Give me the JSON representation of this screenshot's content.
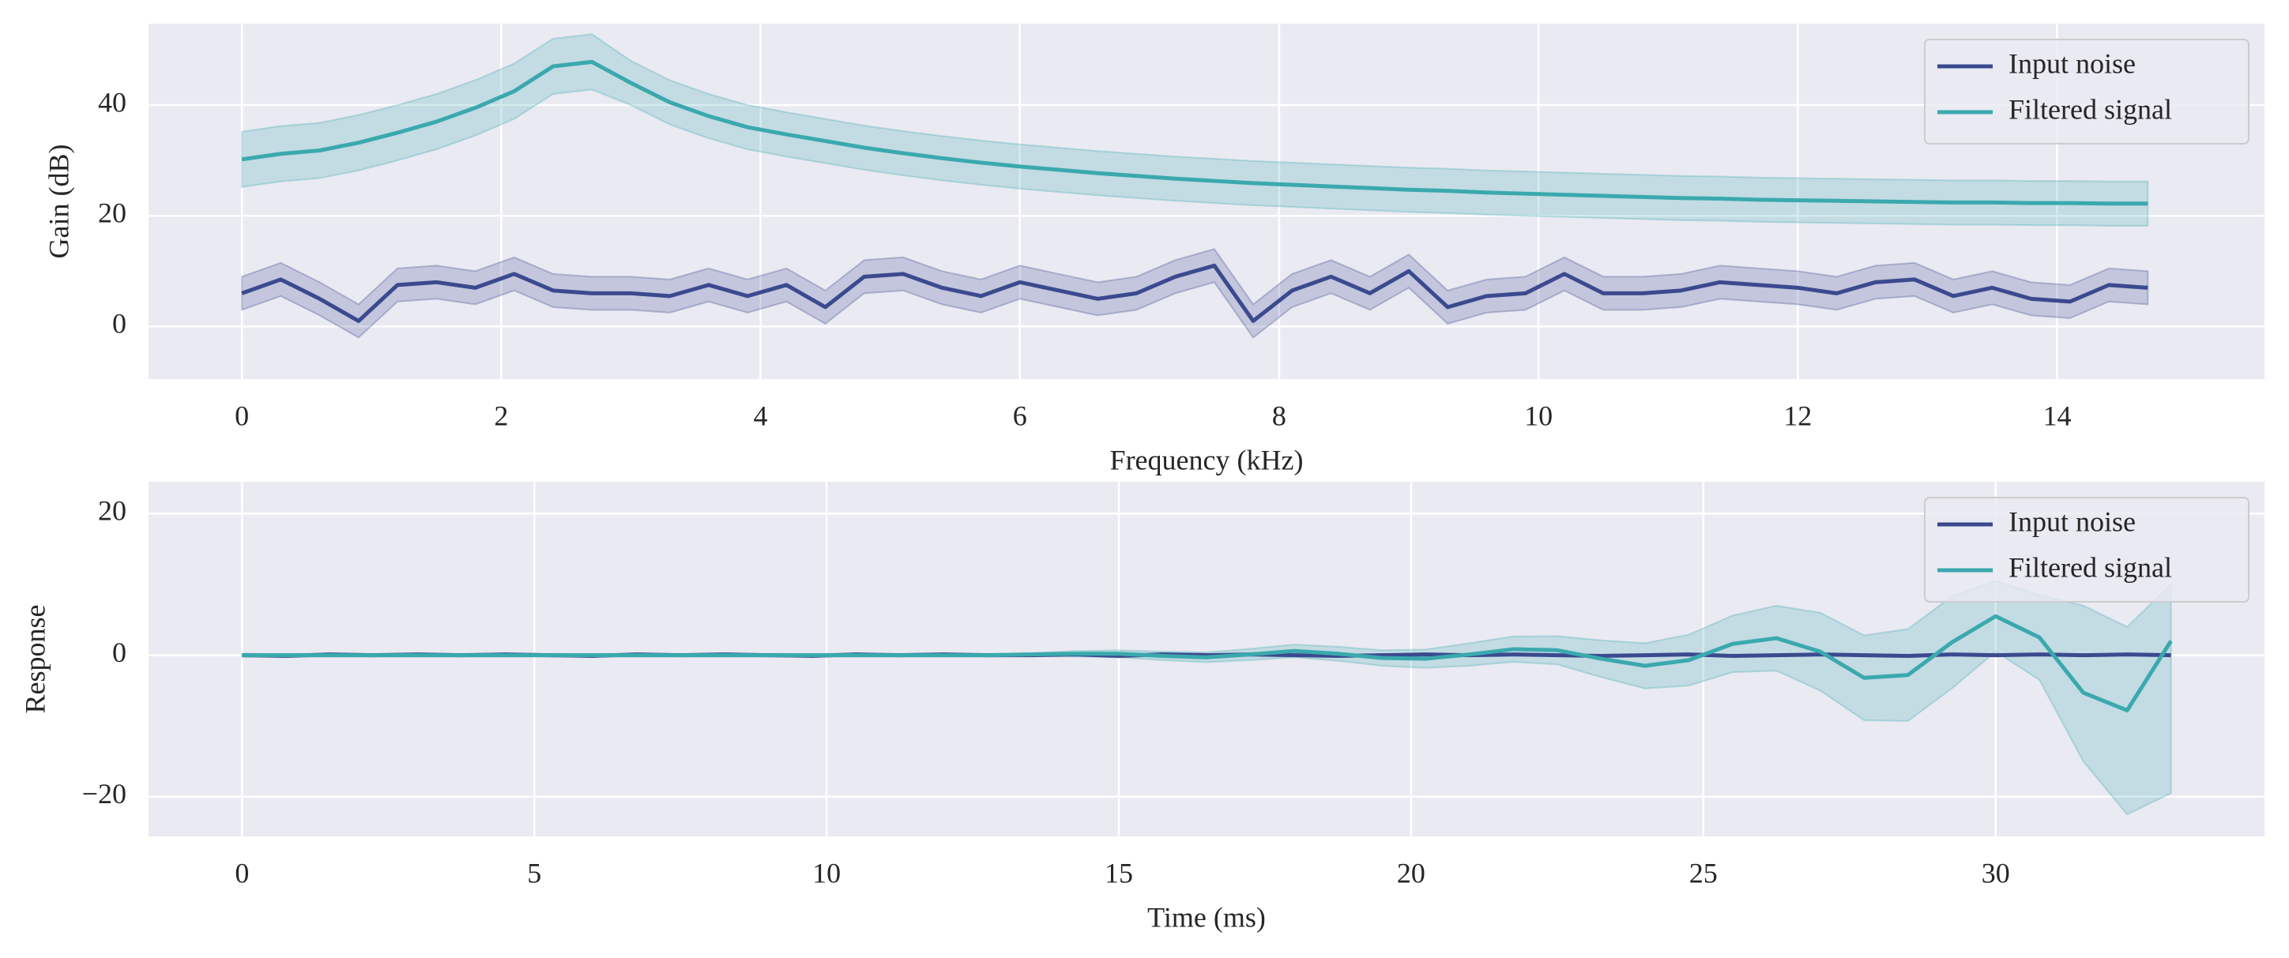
{
  "chart_data": [
    {
      "type": "line",
      "xlabel": "Frequency (kHz)",
      "ylabel": "Gain (dB)",
      "x": [
        0,
        0.3,
        0.6,
        0.9,
        1.2,
        1.5,
        1.8,
        2.1,
        2.4,
        2.7,
        3,
        3.3,
        3.6,
        3.9,
        4.2,
        4.5,
        4.8,
        5.1,
        5.4,
        5.7,
        6,
        6.3,
        6.6,
        6.9,
        7.2,
        7.5,
        7.8,
        8.1,
        8.4,
        8.7,
        9,
        9.3,
        9.6,
        9.9,
        10.2,
        10.5,
        10.8,
        11.1,
        11.4,
        11.7,
        12,
        12.3,
        12.6,
        12.9,
        13.2,
        13.5,
        13.8,
        14.1,
        14.4,
        14.7
      ],
      "series": [
        {
          "name": "Input noise",
          "color": "#3b4a8f",
          "values": [
            6,
            8.5,
            5,
            1,
            7.5,
            8,
            7,
            9.5,
            6.5,
            6,
            6,
            5.5,
            7.5,
            5.5,
            7.5,
            3.5,
            9,
            9.5,
            7,
            5.5,
            8,
            6.5,
            5,
            6,
            9,
            11,
            1,
            6.5,
            9,
            6,
            10,
            3.5,
            5.5,
            6,
            9.5,
            6,
            6,
            6.5,
            8,
            7.5,
            7,
            6,
            8,
            8.5,
            5.5,
            7,
            5,
            4.5,
            7.5,
            7
          ],
          "lower": [
            3,
            5.5,
            2,
            -2,
            4.5,
            5,
            4,
            6.5,
            3.5,
            3,
            3,
            2.5,
            4.5,
            2.5,
            4.5,
            0.5,
            6,
            6.5,
            4,
            2.5,
            5,
            3.5,
            2,
            3,
            6,
            8,
            -2,
            3.5,
            6,
            3,
            7,
            0.5,
            2.5,
            3,
            6.5,
            3,
            3,
            3.5,
            5,
            4.5,
            4,
            3,
            5,
            5.5,
            2.5,
            4,
            2,
            1.5,
            4.5,
            4
          ],
          "upper": [
            9,
            11.5,
            8,
            4,
            10.5,
            11,
            10,
            12.5,
            9.5,
            9,
            9,
            8.5,
            10.5,
            8.5,
            10.5,
            6.5,
            12,
            12.5,
            10,
            8.5,
            11,
            9.5,
            8,
            9,
            12,
            14,
            4,
            9.5,
            12,
            9,
            13,
            6.5,
            8.5,
            9,
            12.5,
            9,
            9,
            9.5,
            11,
            10.5,
            10,
            9,
            11,
            11.5,
            8.5,
            10,
            8,
            7.5,
            10.5,
            10
          ]
        },
        {
          "name": "Filtered signal",
          "color": "#3aa9ae",
          "values": [
            30.2,
            31.2,
            31.8,
            33.2,
            35,
            37,
            39.5,
            42.5,
            47,
            47.8,
            44,
            40.5,
            38,
            36,
            34.7,
            33.5,
            32.3,
            31.3,
            30.4,
            29.6,
            28.9,
            28.3,
            27.7,
            27.2,
            26.7,
            26.3,
            25.9,
            25.6,
            25.3,
            25,
            24.7,
            24.5,
            24.2,
            24,
            23.8,
            23.6,
            23.4,
            23.2,
            23.1,
            22.9,
            22.8,
            22.7,
            22.6,
            22.5,
            22.4,
            22.4,
            22.3,
            22.3,
            22.2,
            22.2
          ],
          "lower": [
            25.2,
            26.2,
            26.8,
            28.2,
            30,
            32,
            34.5,
            37.5,
            42,
            42.8,
            40,
            36.5,
            34,
            32,
            30.7,
            29.5,
            28.3,
            27.3,
            26.4,
            25.6,
            24.9,
            24.3,
            23.7,
            23.2,
            22.7,
            22.3,
            21.9,
            21.6,
            21.3,
            21,
            20.7,
            20.5,
            20.2,
            20,
            19.8,
            19.6,
            19.4,
            19.2,
            19.1,
            18.9,
            18.8,
            18.7,
            18.6,
            18.5,
            18.4,
            18.4,
            18.3,
            18.3,
            18.2,
            18.2
          ],
          "upper": [
            35.2,
            36.2,
            36.8,
            38.2,
            40,
            42,
            44.5,
            47.5,
            52,
            52.8,
            48,
            44.5,
            42,
            40,
            38.7,
            37.5,
            36.3,
            35.3,
            34.4,
            33.6,
            32.9,
            32.3,
            31.7,
            31.2,
            30.7,
            30.3,
            29.9,
            29.6,
            29.3,
            29,
            28.7,
            28.5,
            28.2,
            28,
            27.8,
            27.6,
            27.4,
            27.2,
            27.1,
            26.9,
            26.8,
            26.7,
            26.6,
            26.5,
            26.4,
            26.4,
            26.3,
            26.3,
            26.2,
            26.2
          ]
        }
      ],
      "xlim": [
        -0.72,
        15.6
      ],
      "ylim": [
        -9.5,
        54.7
      ],
      "xticks": [
        0,
        2,
        4,
        6,
        8,
        10,
        12,
        14
      ],
      "yticks": [
        0,
        20,
        40
      ],
      "grid": true,
      "legend": "upper right"
    },
    {
      "type": "line",
      "xlabel": "Time (ms)",
      "ylabel": "Response",
      "x": [
        0,
        0.75,
        1.5,
        2.25,
        3,
        3.75,
        4.5,
        5.25,
        6,
        6.75,
        7.5,
        8.25,
        9,
        9.75,
        10.5,
        11.25,
        12,
        12.75,
        13.5,
        14.25,
        15,
        15.75,
        16.5,
        17.25,
        18,
        18.75,
        19.5,
        20.25,
        21,
        21.75,
        22.5,
        23.25,
        24,
        24.75,
        25.5,
        26.25,
        27,
        27.75,
        28.5,
        29.25,
        30,
        30.75,
        31.5,
        32.25,
        33
      ],
      "series": [
        {
          "name": "Input noise",
          "color": "#3b4a8f",
          "values": [
            0,
            -0.1,
            0.1,
            0,
            0.1,
            0,
            0.1,
            0,
            -0.1,
            0.1,
            0,
            0.1,
            0,
            -0.1,
            0.1,
            0,
            0.1,
            0,
            0,
            0.1,
            -0.1,
            0.1,
            0,
            0.1,
            0,
            -0.1,
            0,
            0.1,
            0,
            0.1,
            0,
            -0.1,
            0,
            0.1,
            -0.1,
            0,
            0.1,
            0,
            -0.1,
            0.1,
            0,
            0.1,
            0,
            0.1,
            0
          ]
        },
        {
          "name": "Filtered signal",
          "color": "#3aa9ae",
          "values": [
            0,
            0,
            0,
            0,
            0,
            0,
            0,
            0,
            0,
            0,
            0,
            0,
            0,
            0,
            0,
            0,
            0,
            0,
            0.1,
            0.2,
            0.2,
            -0.1,
            -0.3,
            0.1,
            0.6,
            0.2,
            -0.4,
            -0.5,
            0.1,
            0.85,
            0.7,
            -0.5,
            -1.5,
            -0.7,
            1.6,
            2.4,
            0.5,
            -3.2,
            -2.8,
            1.8,
            5.5,
            2.5,
            -5.3,
            -7.8,
            2
          ],
          "lower": [
            -0.2,
            -0.2,
            -0.2,
            -0.2,
            -0.2,
            -0.2,
            -0.2,
            -0.2,
            -0.2,
            -0.2,
            -0.2,
            -0.2,
            -0.2,
            -0.2,
            -0.2,
            -0.2,
            -0.2,
            -0.2,
            -0.1,
            -0.2,
            -0.3,
            -0.7,
            -1,
            -0.7,
            -0.3,
            -0.8,
            -1.5,
            -1.8,
            -1.5,
            -0.95,
            -1.3,
            -3.1,
            -4.7,
            -4.3,
            -2.4,
            -2.2,
            -5,
            -9.2,
            -9.3,
            -4.7,
            0.5,
            -3.5,
            -15,
            -22.5,
            -19.5
          ],
          "upper": [
            0.2,
            0.2,
            0.2,
            0.2,
            0.2,
            0.2,
            0.2,
            0.2,
            0.2,
            0.2,
            0.2,
            0.2,
            0.2,
            0.2,
            0.2,
            0.2,
            0.2,
            0.2,
            0.3,
            0.6,
            0.7,
            0.5,
            0.4,
            0.9,
            1.5,
            1.2,
            0.7,
            0.8,
            1.7,
            2.65,
            2.7,
            2.1,
            1.7,
            2.9,
            5.6,
            7,
            6,
            2.8,
            3.7,
            8.3,
            10.5,
            8.5,
            7,
            4,
            10
          ]
        }
      ],
      "xlim": [
        -1.6,
        34.6
      ],
      "ylim": [
        -25.6,
        24.5
      ],
      "xticks": [
        0,
        5,
        10,
        15,
        20,
        25,
        30
      ],
      "yticks": [
        {
          "value": -20,
          "label": "−20"
        },
        0,
        20
      ],
      "grid": true,
      "legend": "upper right"
    }
  ]
}
